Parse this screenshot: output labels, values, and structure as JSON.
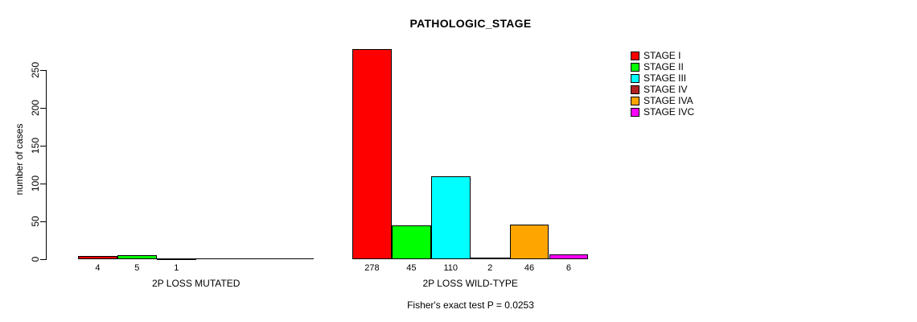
{
  "chart_data": {
    "type": "bar",
    "title": "PATHOLOGIC_STAGE",
    "xlabel": "",
    "ylabel": "number of cases",
    "ylim": [
      0,
      278
    ],
    "yticks": [
      0,
      50,
      100,
      150,
      200,
      250
    ],
    "grid": false,
    "legend_position": "right",
    "categories": [
      "STAGE I",
      "STAGE II",
      "STAGE III",
      "STAGE IV",
      "STAGE IVA",
      "STAGE IVC"
    ],
    "legend": [
      {
        "label": "STAGE I",
        "color": "#FF0000"
      },
      {
        "label": "STAGE II",
        "color": "#00FF00"
      },
      {
        "label": "STAGE III",
        "color": "#00FFFF"
      },
      {
        "label": "STAGE IV",
        "color": "#B22222"
      },
      {
        "label": "STAGE IVA",
        "color": "#FFA500"
      },
      {
        "label": "STAGE IVC",
        "color": "#FF00FF"
      }
    ],
    "groups": [
      {
        "label": "2P LOSS MUTATED",
        "values": [
          4,
          5,
          1,
          0,
          0,
          0
        ],
        "bar_labels": [
          "4",
          "5",
          "1",
          "",
          "",
          ""
        ]
      },
      {
        "label": "2P LOSS WILD-TYPE",
        "values": [
          278,
          45,
          110,
          2,
          46,
          6
        ],
        "bar_labels": [
          "278",
          "45",
          "110",
          "2",
          "46",
          "6"
        ]
      }
    ],
    "annotation": "Fisher's exact test P = 0.0253"
  }
}
